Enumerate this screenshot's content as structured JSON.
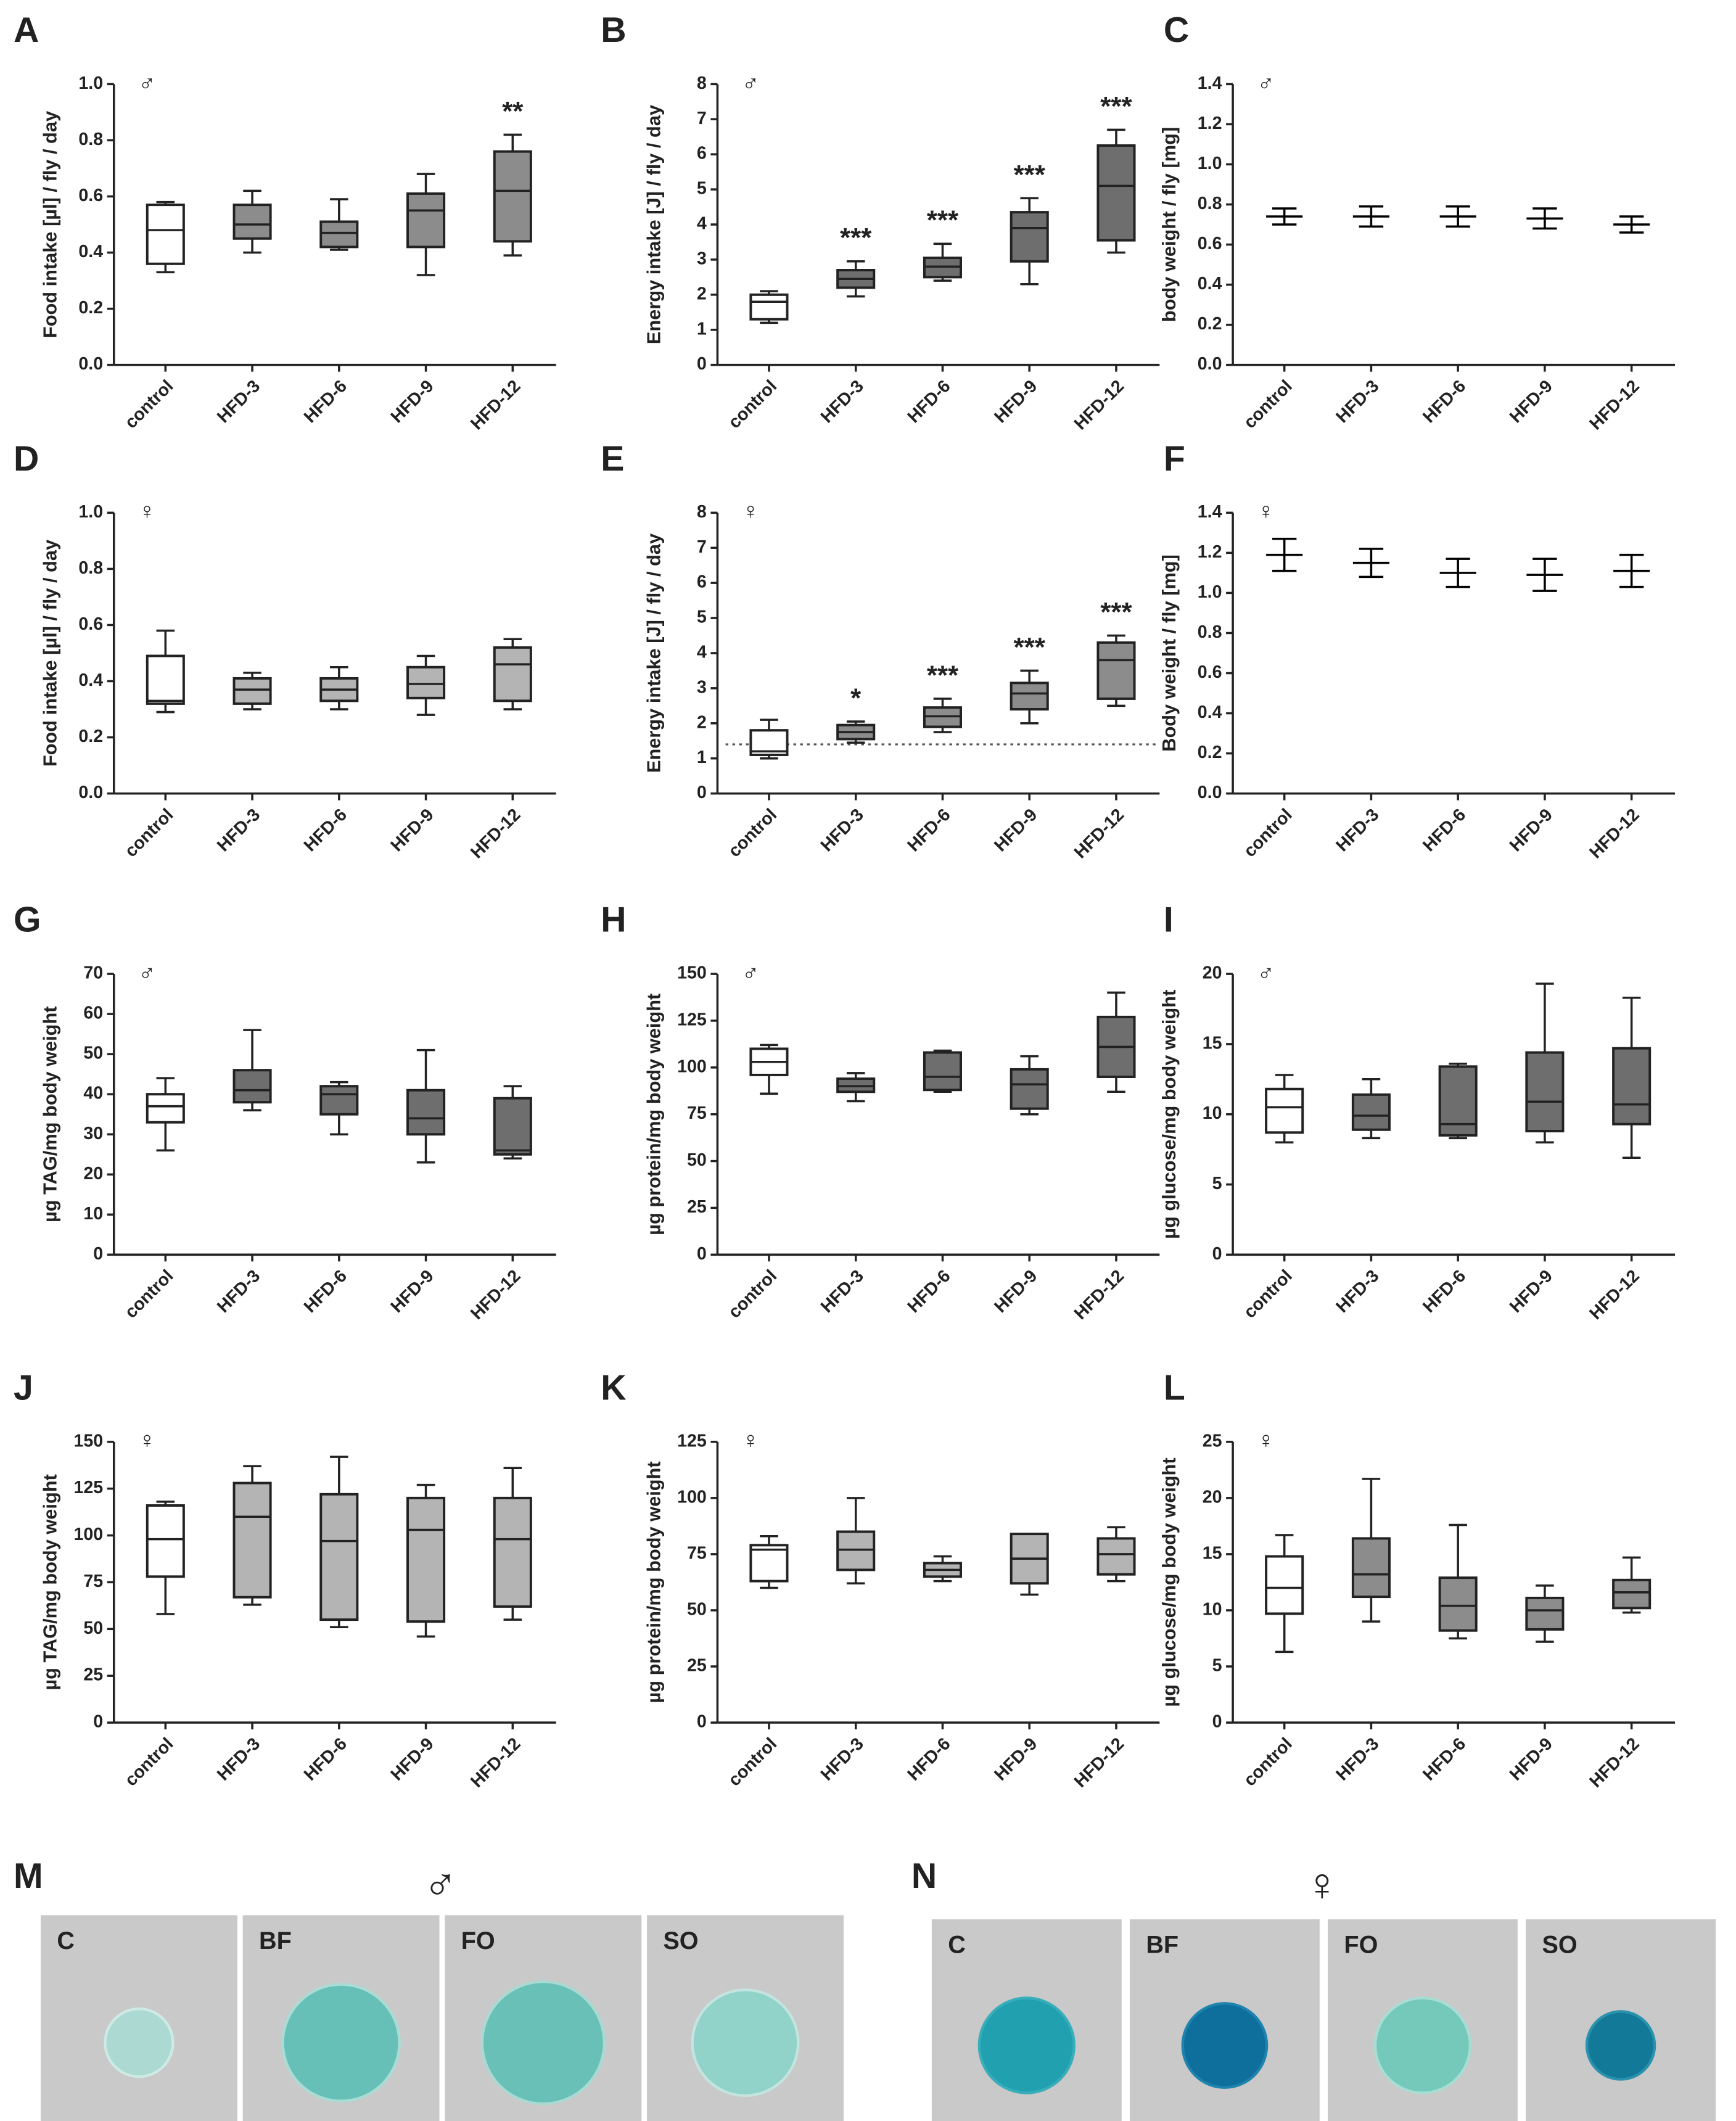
{
  "chart_data": [
    {
      "type": "box",
      "panel": "A",
      "symbol": "♂",
      "ylabel": "Food intake [µl] / fly / day",
      "categories": [
        "control",
        "HFD-3",
        "HFD-6",
        "HFD-9",
        "HFD-12"
      ],
      "colors": [
        "#ffffff",
        "#8c8c8c",
        "#8c8c8c",
        "#8c8c8c",
        "#8c8c8c"
      ],
      "min": [
        0.33,
        0.4,
        0.41,
        0.32,
        0.39
      ],
      "q1": [
        0.36,
        0.45,
        0.42,
        0.42,
        0.44
      ],
      "median": [
        0.48,
        0.5,
        0.47,
        0.55,
        0.62
      ],
      "q3": [
        0.57,
        0.57,
        0.51,
        0.61,
        0.76
      ],
      "max": [
        0.58,
        0.62,
        0.59,
        0.68,
        0.82
      ],
      "annotations": [
        null,
        null,
        null,
        null,
        "**"
      ],
      "ylim": [
        0,
        1
      ],
      "yticks": [
        {
          "value": 0,
          "label": "0.0"
        },
        0.2,
        0.4,
        0.6,
        0.8,
        {
          "value": 1,
          "label": "1.0"
        }
      ]
    },
    {
      "type": "box",
      "panel": "B",
      "symbol": "♂",
      "ylabel": "Energy intake [J] / fly / day",
      "categories": [
        "control",
        "HFD-3",
        "HFD-6",
        "HFD-9",
        "HFD-12"
      ],
      "colors": [
        "#ffffff",
        "#6e6e6e",
        "#6e6e6e",
        "#6e6e6e",
        "#6e6e6e"
      ],
      "min": [
        1.2,
        1.95,
        2.4,
        2.3,
        3.2
      ],
      "q1": [
        1.3,
        2.2,
        2.5,
        2.95,
        3.55
      ],
      "median": [
        1.8,
        2.45,
        2.8,
        3.9,
        5.1
      ],
      "q3": [
        2.0,
        2.7,
        3.05,
        4.35,
        6.25
      ],
      "max": [
        2.1,
        2.95,
        3.45,
        4.75,
        6.7
      ],
      "annotations": [
        null,
        "***",
        "***",
        "***",
        "***"
      ],
      "ylim": [
        0,
        8
      ],
      "yticks": [
        0,
        1,
        2,
        3,
        4,
        5,
        6,
        7,
        8
      ]
    },
    {
      "type": "errorbar",
      "panel": "C",
      "symbol": "♂",
      "ylabel": "body weight / fly [mg]",
      "categories": [
        "control",
        "HFD-3",
        "HFD-6",
        "HFD-9",
        "HFD-12"
      ],
      "color": "#000000",
      "values": [
        0.74,
        0.74,
        0.74,
        0.73,
        0.7
      ],
      "errors": [
        0.04,
        0.05,
        0.05,
        0.05,
        0.04
      ],
      "ylim": [
        0,
        1.4
      ],
      "yticks": [
        {
          "value": 0,
          "label": "0.0"
        },
        0.2,
        0.4,
        0.6,
        0.8,
        {
          "value": 1,
          "label": "1.0"
        },
        1.2,
        1.4
      ]
    },
    {
      "type": "box",
      "panel": "D",
      "symbol": "♀",
      "ylabel": "Food intake [µl] / fly / day",
      "categories": [
        "control",
        "HFD-3",
        "HFD-6",
        "HFD-9",
        "HFD-12"
      ],
      "colors": [
        "#ffffff",
        "#b4b4b4",
        "#b4b4b4",
        "#b4b4b4",
        "#b4b4b4"
      ],
      "min": [
        0.29,
        0.3,
        0.3,
        0.28,
        0.3
      ],
      "q1": [
        0.32,
        0.32,
        0.33,
        0.34,
        0.33
      ],
      "median": [
        0.33,
        0.37,
        0.37,
        0.39,
        0.46
      ],
      "q3": [
        0.49,
        0.41,
        0.41,
        0.45,
        0.52
      ],
      "max": [
        0.58,
        0.43,
        0.45,
        0.49,
        0.55
      ],
      "annotations": [
        null,
        null,
        null,
        null,
        null
      ],
      "ylim": [
        0,
        1
      ],
      "yticks": [
        {
          "value": 0,
          "label": "0.0"
        },
        0.2,
        0.4,
        0.6,
        0.8,
        {
          "value": 1,
          "label": "1.0"
        }
      ]
    },
    {
      "type": "box",
      "panel": "E",
      "symbol": "♀",
      "ylabel": "Energy intake [J] / fly / day",
      "categories": [
        "control",
        "HFD-3",
        "HFD-6",
        "HFD-9",
        "HFD-12"
      ],
      "colors": [
        "#ffffff",
        "#8c8c8c",
        "#8c8c8c",
        "#8c8c8c",
        "#8c8c8c"
      ],
      "min": [
        1.0,
        1.45,
        1.75,
        2.0,
        2.5
      ],
      "q1": [
        1.1,
        1.55,
        1.9,
        2.4,
        2.7
      ],
      "median": [
        1.2,
        1.75,
        2.2,
        2.85,
        3.8
      ],
      "q3": [
        1.8,
        1.95,
        2.45,
        3.15,
        4.3
      ],
      "max": [
        2.1,
        2.05,
        2.7,
        3.5,
        4.5
      ],
      "annotations": [
        null,
        "*",
        "***",
        "***",
        "***"
      ],
      "reference_line": 1.4,
      "ylim": [
        0,
        8
      ],
      "yticks": [
        0,
        1,
        2,
        3,
        4,
        5,
        6,
        7,
        8
      ]
    },
    {
      "type": "errorbar",
      "panel": "F",
      "symbol": "♀",
      "ylabel": "Body weight / fly [mg]",
      "categories": [
        "control",
        "HFD-3",
        "HFD-6",
        "HFD-9",
        "HFD-12"
      ],
      "color": "#000000",
      "values": [
        1.19,
        1.15,
        1.1,
        1.09,
        1.11
      ],
      "errors": [
        0.08,
        0.07,
        0.07,
        0.08,
        0.08
      ],
      "ylim": [
        0,
        1.4
      ],
      "yticks": [
        {
          "value": 0,
          "label": "0.0"
        },
        0.2,
        0.4,
        0.6,
        0.8,
        {
          "value": 1,
          "label": "1.0"
        },
        1.2,
        1.4
      ]
    },
    {
      "type": "box",
      "panel": "G",
      "symbol": "♂",
      "ylabel": "µg TAG/mg body weight",
      "categories": [
        "control",
        "HFD-3",
        "HFD-6",
        "HFD-9",
        "HFD-12"
      ],
      "colors": [
        "#ffffff",
        "#6e6e6e",
        "#6e6e6e",
        "#6e6e6e",
        "#6e6e6e"
      ],
      "min": [
        26,
        36,
        30,
        23,
        24
      ],
      "q1": [
        33,
        38,
        35,
        30,
        25
      ],
      "median": [
        37,
        41,
        40,
        34,
        26
      ],
      "q3": [
        40,
        46,
        42,
        41,
        39
      ],
      "max": [
        44,
        56,
        43,
        51,
        42
      ],
      "annotations": [
        null,
        null,
        null,
        null,
        null
      ],
      "ylim": [
        0,
        70
      ],
      "yticks": [
        0,
        10,
        20,
        30,
        40,
        50,
        60,
        70
      ]
    },
    {
      "type": "box",
      "panel": "H",
      "symbol": "♂",
      "ylabel": "µg protein/mg body weight",
      "categories": [
        "control",
        "HFD-3",
        "HFD-6",
        "HFD-9",
        "HFD-12"
      ],
      "colors": [
        "#ffffff",
        "#6e6e6e",
        "#6e6e6e",
        "#6e6e6e",
        "#6e6e6e"
      ],
      "min": [
        86,
        82,
        87,
        75,
        87
      ],
      "q1": [
        96,
        87,
        88,
        78,
        95
      ],
      "median": [
        103,
        90,
        95,
        91,
        111
      ],
      "q3": [
        110,
        94,
        108,
        99,
        127
      ],
      "max": [
        112,
        97,
        109,
        106,
        140
      ],
      "annotations": [
        null,
        null,
        null,
        null,
        null
      ],
      "ylim": [
        0,
        150
      ],
      "yticks": [
        0,
        25,
        50,
        75,
        100,
        125,
        150
      ]
    },
    {
      "type": "box",
      "panel": "I",
      "symbol": "♂",
      "ylabel": "µg glucose/mg body weight",
      "categories": [
        "control",
        "HFD-3",
        "HFD-6",
        "HFD-9",
        "HFD-12"
      ],
      "colors": [
        "#ffffff",
        "#6e6e6e",
        "#6e6e6e",
        "#6e6e6e",
        "#6e6e6e"
      ],
      "min": [
        8,
        8.3,
        8.3,
        8,
        6.9
      ],
      "q1": [
        8.7,
        8.9,
        8.5,
        8.8,
        9.3
      ],
      "median": [
        10.5,
        9.9,
        9.3,
        10.9,
        10.7
      ],
      "q3": [
        11.8,
        11.4,
        13.4,
        14.4,
        14.7
      ],
      "max": [
        12.8,
        12.5,
        13.6,
        19.3,
        18.3
      ],
      "annotations": [
        null,
        null,
        null,
        null,
        null
      ],
      "ylim": [
        0,
        20
      ],
      "yticks": [
        0,
        5,
        10,
        15,
        20
      ]
    },
    {
      "type": "box",
      "panel": "J",
      "symbol": "♀",
      "ylabel": "µg TAG/mg body weight",
      "categories": [
        "control",
        "HFD-3",
        "HFD-6",
        "HFD-9",
        "HFD-12"
      ],
      "colors": [
        "#ffffff",
        "#b4b4b4",
        "#b4b4b4",
        "#b4b4b4",
        "#b4b4b4"
      ],
      "min": [
        58,
        63,
        51,
        46,
        55
      ],
      "q1": [
        78,
        67,
        55,
        54,
        62
      ],
      "median": [
        98,
        110,
        97,
        103,
        98
      ],
      "q3": [
        116,
        128,
        122,
        120,
        120
      ],
      "max": [
        118,
        137,
        142,
        127,
        136
      ],
      "annotations": [
        null,
        null,
        null,
        null,
        null
      ],
      "ylim": [
        0,
        150
      ],
      "yticks": [
        0,
        25,
        50,
        75,
        100,
        125,
        150
      ]
    },
    {
      "type": "box",
      "panel": "K",
      "symbol": "♀",
      "ylabel": "µg protein/mg body weight",
      "categories": [
        "control",
        "HFD-3",
        "HFD-6",
        "HFD-9",
        "HFD-12"
      ],
      "colors": [
        "#ffffff",
        "#b4b4b4",
        "#b4b4b4",
        "#b4b4b4",
        "#b4b4b4"
      ],
      "min": [
        60,
        62,
        63,
        57,
        63
      ],
      "q1": [
        63,
        68,
        65,
        62,
        66
      ],
      "median": [
        77,
        77,
        68,
        73,
        75
      ],
      "q3": [
        79,
        85,
        71,
        84,
        82
      ],
      "max": [
        83,
        100,
        74,
        84,
        87
      ],
      "annotations": [
        null,
        null,
        null,
        null,
        null
      ],
      "ylim": [
        0,
        125
      ],
      "yticks": [
        0,
        25,
        50,
        75,
        100,
        125
      ]
    },
    {
      "type": "box",
      "panel": "L",
      "symbol": "♀",
      "ylabel": "µg glucose/mg body weight",
      "categories": [
        "control",
        "HFD-3",
        "HFD-6",
        "HFD-9",
        "HFD-12"
      ],
      "colors": [
        "#ffffff",
        "#8c8c8c",
        "#8c8c8c",
        "#8c8c8c",
        "#8c8c8c"
      ],
      "min": [
        6.3,
        9,
        7.5,
        7.2,
        9.8
      ],
      "q1": [
        9.7,
        11.2,
        8.2,
        8.3,
        10.2
      ],
      "median": [
        12,
        13.2,
        10.4,
        10,
        11.6
      ],
      "q3": [
        14.8,
        16.4,
        12.9,
        11.1,
        12.7
      ],
      "max": [
        16.7,
        21.7,
        17.6,
        12.2,
        14.7
      ],
      "annotations": [
        null,
        null,
        null,
        null,
        null
      ],
      "ylim": [
        0,
        25
      ],
      "yticks": [
        0,
        5,
        10,
        15,
        20,
        25
      ]
    }
  ],
  "image_panels": [
    {
      "label": "M",
      "symbol": "♂",
      "images": [
        "C",
        "BF",
        "FO",
        "SO"
      ]
    },
    {
      "label": "N",
      "symbol": "♀",
      "images": [
        "C",
        "BF",
        "FO",
        "SO"
      ]
    }
  ]
}
